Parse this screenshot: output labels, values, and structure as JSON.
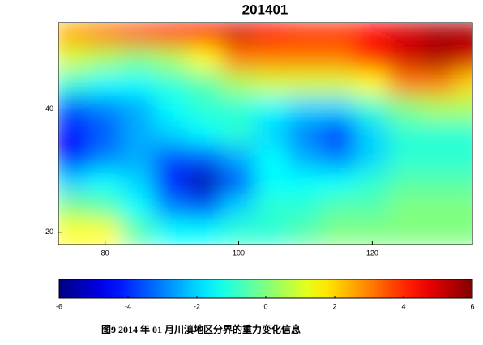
{
  "chart_data": {
    "type": "heatmap",
    "title": "201401",
    "x": [
      75,
      80,
      85,
      90,
      95,
      100,
      105,
      110,
      115,
      120,
      125,
      130,
      135
    ],
    "y": [
      52,
      48,
      44,
      40,
      36,
      32,
      28,
      24,
      20
    ],
    "z": [
      [
        2.5,
        3,
        3.5,
        4,
        4.5,
        5,
        4.5,
        4,
        4,
        4.5,
        5,
        5.5,
        5.5
      ],
      [
        1,
        0.5,
        0,
        0.5,
        1.5,
        3,
        3,
        3,
        3,
        4,
        5,
        5.5,
        5
      ],
      [
        -1,
        -1.5,
        -1.5,
        -1,
        -0.5,
        0.5,
        1,
        1,
        1,
        1.5,
        3,
        3,
        2
      ],
      [
        -3.5,
        -3,
        -2.5,
        -1.5,
        -1,
        -1,
        -1.5,
        -2,
        -2,
        -1,
        0,
        0.5,
        0.5
      ],
      [
        -4.5,
        -3.5,
        -2.5,
        -2,
        -1.5,
        -1,
        -2,
        -3,
        -4,
        -2,
        -1,
        -1,
        -1
      ],
      [
        -4.5,
        -3,
        -2.5,
        -3.5,
        -3.5,
        -2.5,
        -1.5,
        -2.5,
        -3,
        -2,
        -1,
        -1,
        -1
      ],
      [
        -2,
        -1.5,
        -2,
        -4.5,
        -5.5,
        -3.5,
        -1.5,
        -1.5,
        -1.5,
        -1,
        -0.5,
        -0.5,
        -0.5
      ],
      [
        0,
        -0.5,
        -1.5,
        -3,
        -3.5,
        -2,
        -1,
        -1,
        -0.5,
        -0.5,
        0,
        0,
        0
      ],
      [
        1.5,
        1.5,
        -0.5,
        -1.5,
        -1.5,
        -1,
        -1,
        -0.5,
        0,
        0,
        0,
        0,
        0
      ]
    ],
    "xlim": [
      73,
      135
    ],
    "ylim": [
      18,
      54
    ],
    "xticks": [
      80,
      100,
      120
    ],
    "yticks": [
      20,
      40
    ],
    "colormap": "jet",
    "clim": [
      -6,
      6
    ],
    "cticks": [
      -6,
      -4,
      -2,
      0,
      2,
      4,
      6
    ]
  },
  "caption": "图9   2014 年 01 月川滇地区分界的重力变化信息"
}
